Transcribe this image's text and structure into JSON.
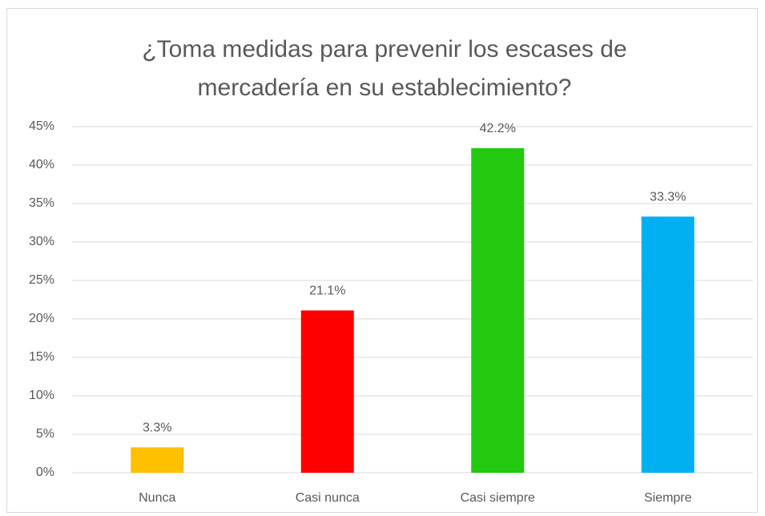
{
  "chart_data": {
    "type": "bar",
    "title": "¿Toma medidas para prevenir los escases de mercadería en su establecimiento?",
    "categories": [
      "Nunca",
      "Casi nunca",
      "Casi siempre",
      "Siempre"
    ],
    "values": [
      3.3,
      21.1,
      42.2,
      33.3
    ],
    "value_labels": [
      "3.3%",
      "21.1%",
      "42.2%",
      "33.3%"
    ],
    "colors": [
      "#ffc000",
      "#ff0000",
      "#22c90f",
      "#00b0f0"
    ],
    "ylim": [
      0,
      45
    ],
    "yticks": [
      {
        "value": 0,
        "label": "0%"
      },
      {
        "value": 5,
        "label": "5%"
      },
      {
        "value": 10,
        "label": "10%"
      },
      {
        "value": 15,
        "label": "15%"
      },
      {
        "value": 20,
        "label": "20%"
      },
      {
        "value": 25,
        "label": "25%"
      },
      {
        "value": 30,
        "label": "30%"
      },
      {
        "value": 35,
        "label": "35%"
      },
      {
        "value": 40,
        "label": "40%"
      },
      {
        "value": 45,
        "label": "45%"
      }
    ],
    "grid": true
  }
}
